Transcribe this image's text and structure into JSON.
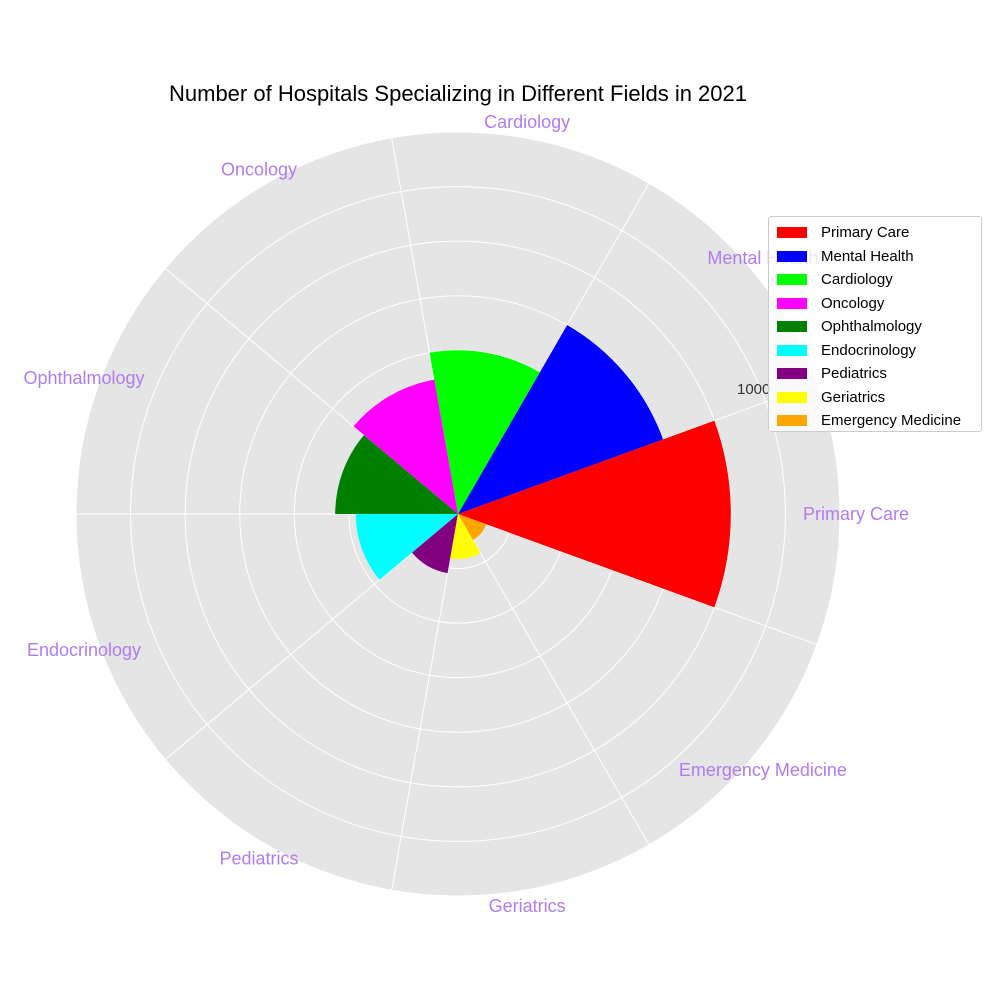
{
  "chart_data": {
    "type": "polar-bar",
    "title": "Number of Hospitals Specializing in Different Fields in 2021",
    "categories": [
      "Primary Care",
      "Mental Health",
      "Cardiology",
      "Oncology",
      "Ophthalmology",
      "Endocrinology",
      "Pediatrics",
      "Geriatrics",
      "Emergency Medicine"
    ],
    "values": [
      1000,
      800,
      600,
      500,
      450,
      375,
      220,
      165,
      110
    ],
    "colors": [
      "#ff0000",
      "#0000ff",
      "#00ff00",
      "#ff00ff",
      "#008000",
      "#00ffff",
      "#800080",
      "#ffff00",
      "#ffa500"
    ],
    "radial_ticks": [
      200,
      400,
      600,
      800,
      1000,
      1200,
      1400
    ],
    "radial_tick_label_visible": "1000",
    "rmax": 1400,
    "category_label_color": "#b07cf0",
    "background_color": "#e5e5e5",
    "grid": true,
    "legend_position": "right"
  }
}
